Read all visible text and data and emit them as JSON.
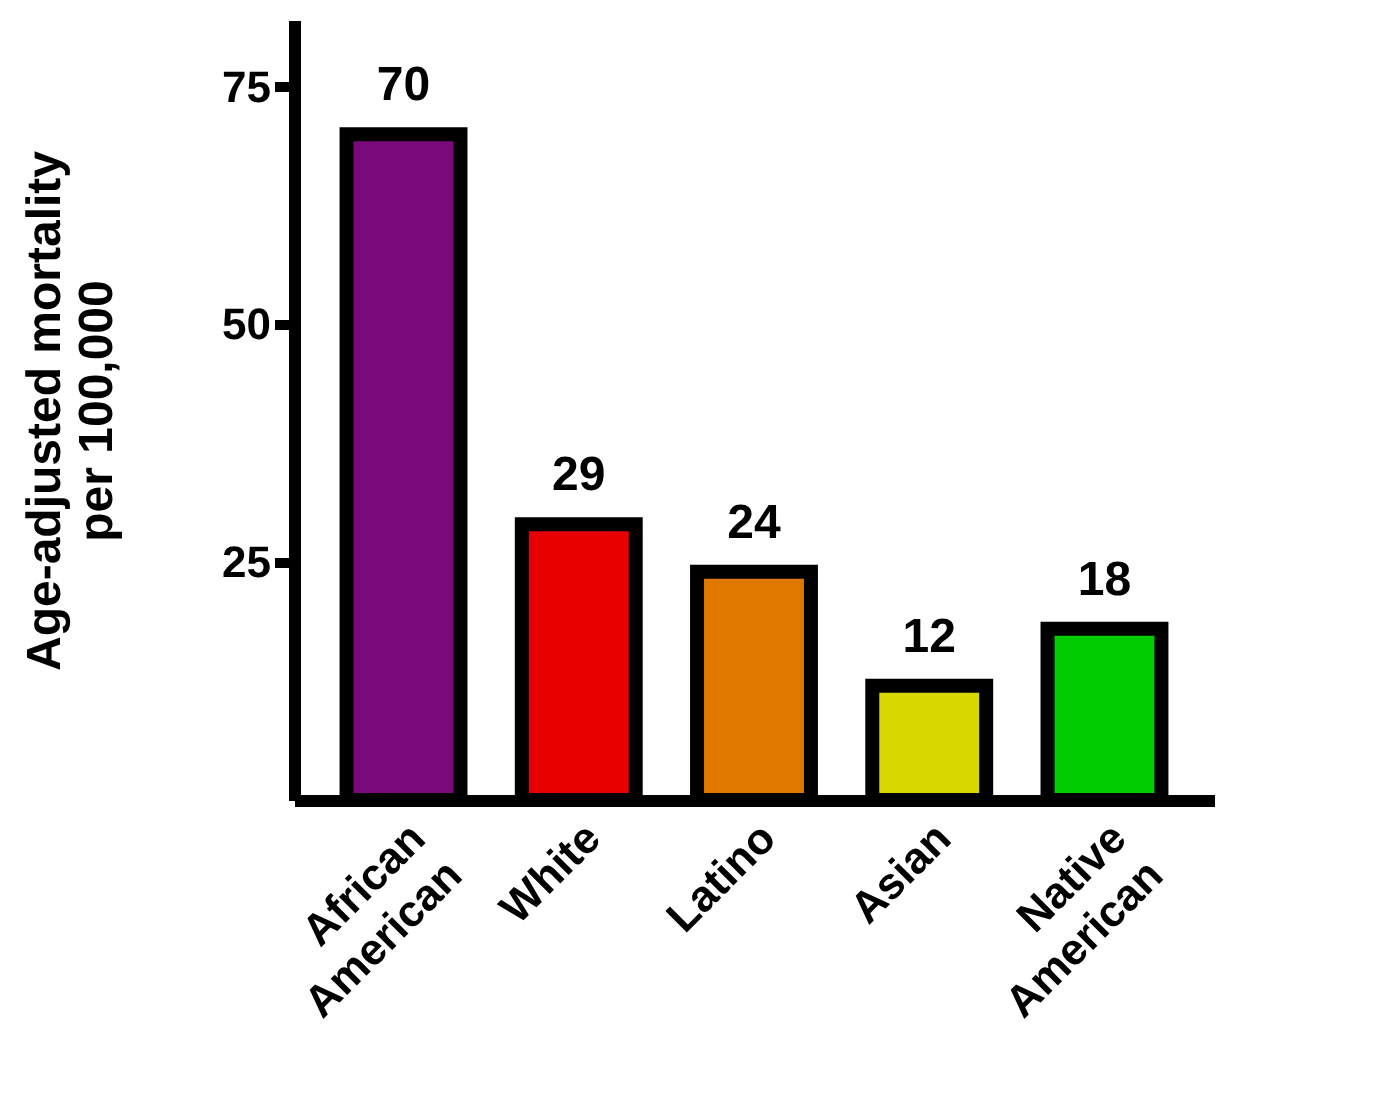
{
  "chart_data": {
    "type": "bar",
    "ylabel": "Age-adjusted mortality per 100,000",
    "categories": [
      "African American",
      "White",
      "Latino",
      "Asian",
      "Native American"
    ],
    "values": [
      70,
      29,
      24,
      12,
      18
    ],
    "colors": [
      "#7a0a7a",
      "#e80000",
      "#e07800",
      "#d8d800",
      "#00cc00"
    ],
    "ylim": [
      0,
      82
    ],
    "yticks": [
      25,
      50,
      75
    ],
    "data_labels": true
  }
}
